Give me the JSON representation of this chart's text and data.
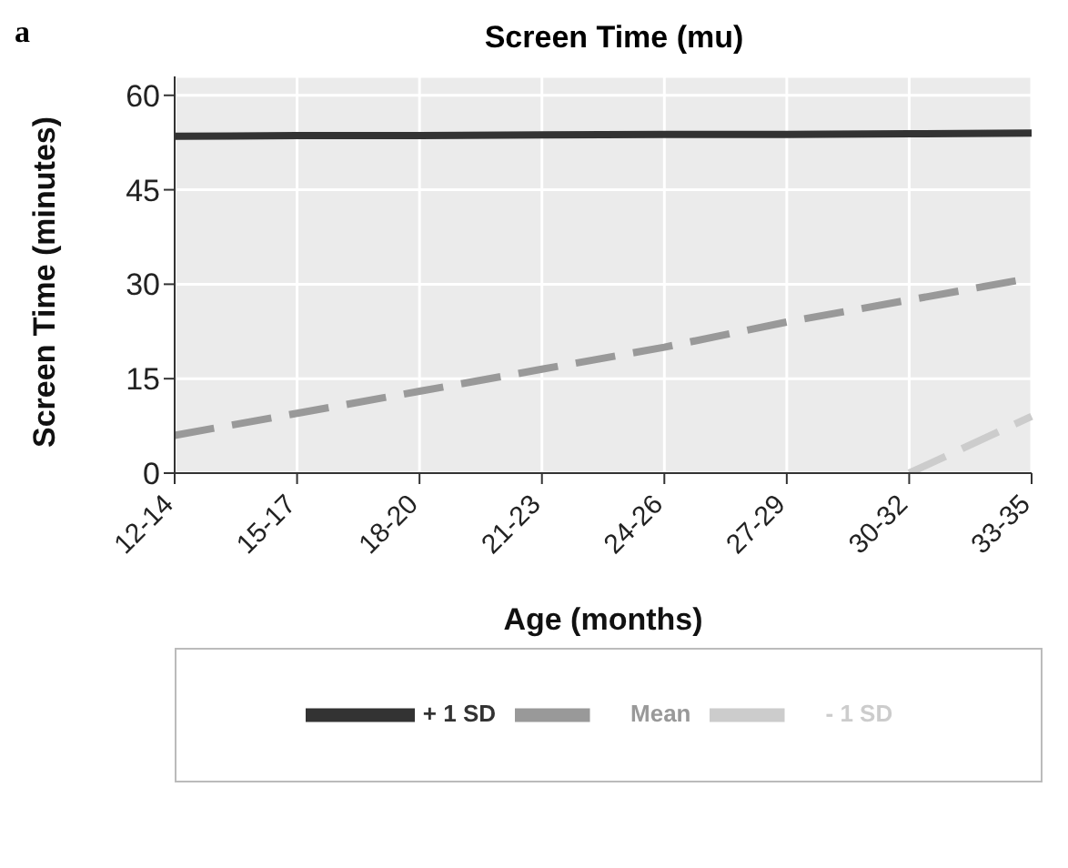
{
  "chart_data": {
    "type": "line",
    "title": "Screen Time (mu)",
    "xlabel": "Age (months)",
    "ylabel": "Screen Time (minutes)",
    "annotations": [
      "a"
    ],
    "categories": [
      "12-14",
      "15-17",
      "18-20",
      "21-23",
      "24-26",
      "27-29",
      "30-32",
      "33-35"
    ],
    "series": [
      {
        "name": "+ 1 SD",
        "color": "#333333",
        "line_style": "solid",
        "values": [
          53.5,
          53.6,
          53.6,
          53.7,
          53.8,
          53.8,
          53.9,
          54
        ]
      },
      {
        "name": "Mean",
        "color": "#999999",
        "line_style": "dashed",
        "values": [
          6,
          9.5,
          13,
          16.5,
          20,
          24,
          27.5,
          31
        ]
      },
      {
        "name": "- 1 SD",
        "color": "#cccccc",
        "line_style": "dashed",
        "values": [
          null,
          null,
          null,
          null,
          null,
          null,
          0,
          9
        ]
      }
    ],
    "ylim": [
      0,
      63
    ],
    "yticks": [
      0,
      15,
      30,
      45,
      60
    ],
    "grid": true,
    "legend": "bottom"
  }
}
